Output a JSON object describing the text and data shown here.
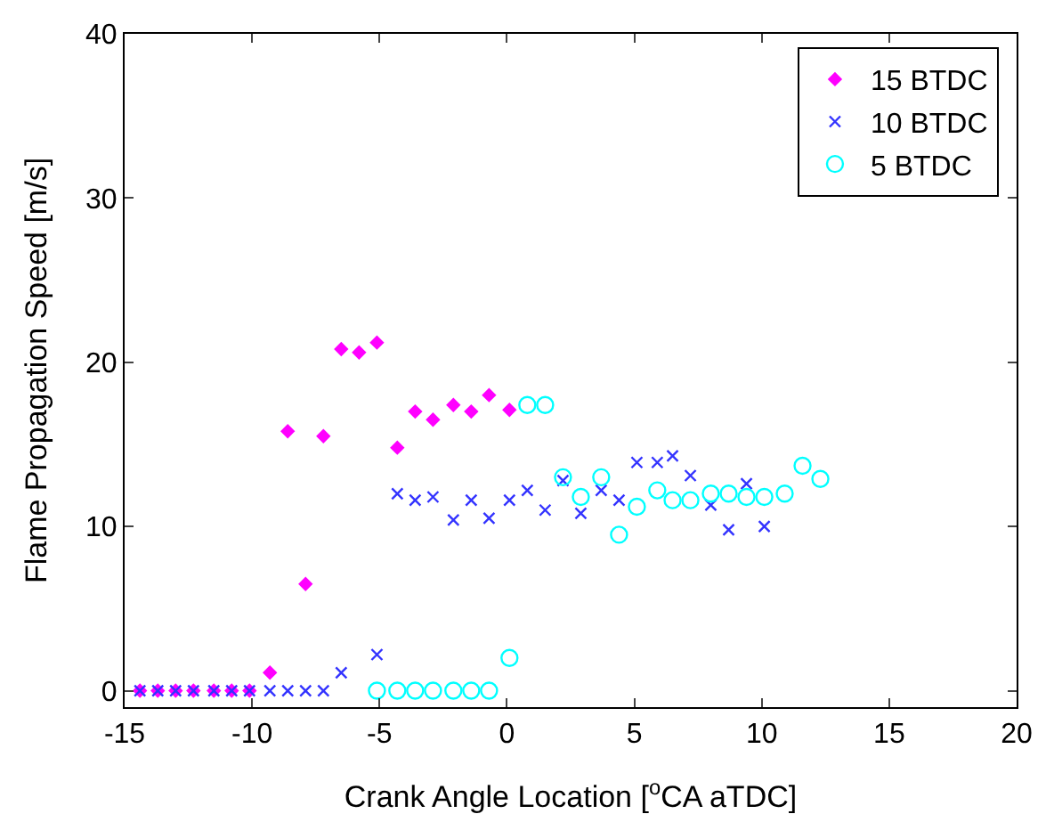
{
  "chart_data": {
    "type": "scatter",
    "xlabel": "Crank Angle Location [$^{o}$CA aTDC]",
    "ylabel": "Flame Propagation Speed [m/s]",
    "xlim": [
      -15,
      20
    ],
    "xticks": [
      -15,
      -10,
      -5,
      0,
      5,
      10,
      15,
      20
    ],
    "ylim": [
      -1,
      40
    ],
    "yticks": [
      0,
      10,
      20,
      30,
      40
    ],
    "grid": false,
    "legend": "top right",
    "series": [
      {
        "name": "15 BTDC",
        "color": "#ff00ff",
        "marker": "diamond",
        "x": [
          -14.4,
          -13.7,
          -13.0,
          -12.3,
          -11.5,
          -10.8,
          -10.1,
          -9.3,
          -8.6,
          -7.9,
          -7.2,
          -6.5,
          -5.8,
          -5.1,
          -4.3,
          -3.6,
          -2.9,
          -2.1,
          -1.4,
          -0.7,
          0.1
        ],
        "values": [
          0,
          0,
          0,
          0,
          0,
          0,
          0,
          1.1,
          15.8,
          6.5,
          15.5,
          20.8,
          20.6,
          21.2,
          14.8,
          17.0,
          16.5,
          17.4,
          17.0,
          18.0,
          17.1
        ]
      },
      {
        "name": "10 BTDC",
        "color": "#3333ff",
        "marker": "cross",
        "x": [
          -14.4,
          -13.7,
          -13.0,
          -12.3,
          -11.5,
          -10.8,
          -10.1,
          -9.3,
          -8.6,
          -7.9,
          -7.2,
          -6.5,
          -5.1,
          -4.3,
          -3.6,
          -2.9,
          -2.1,
          -1.4,
          -0.7,
          0.1,
          0.8,
          1.5,
          2.2,
          2.9,
          3.7,
          4.4,
          5.1,
          5.9,
          6.5,
          7.2,
          8.0,
          8.7,
          9.4,
          10.1
        ],
        "values": [
          0,
          0,
          0,
          0,
          0,
          0,
          0,
          0,
          0,
          0,
          0,
          1.1,
          2.2,
          12.0,
          11.6,
          11.8,
          10.4,
          11.6,
          10.5,
          11.6,
          12.2,
          11.0,
          12.8,
          10.8,
          12.2,
          11.6,
          13.9,
          13.9,
          14.3,
          13.1,
          11.3,
          9.8,
          12.6,
          10.0
        ]
      },
      {
        "name": "5 BTDC",
        "color": "#00ffff",
        "marker": "circle",
        "x": [
          -5.1,
          -4.3,
          -3.6,
          -2.9,
          -2.1,
          -1.4,
          -0.7,
          0.1,
          0.8,
          1.5,
          2.2,
          2.9,
          3.7,
          4.4,
          5.1,
          5.9,
          6.5,
          7.2,
          8.0,
          8.7,
          9.4,
          10.1,
          10.9,
          11.6,
          12.3
        ],
        "values": [
          0,
          0,
          0,
          0,
          0,
          0,
          0,
          2.0,
          17.4,
          17.4,
          13.0,
          11.8,
          13.0,
          9.5,
          11.2,
          12.2,
          11.6,
          11.6,
          12.0,
          12.0,
          11.8,
          11.8,
          12.0,
          13.7,
          12.9
        ]
      }
    ]
  }
}
